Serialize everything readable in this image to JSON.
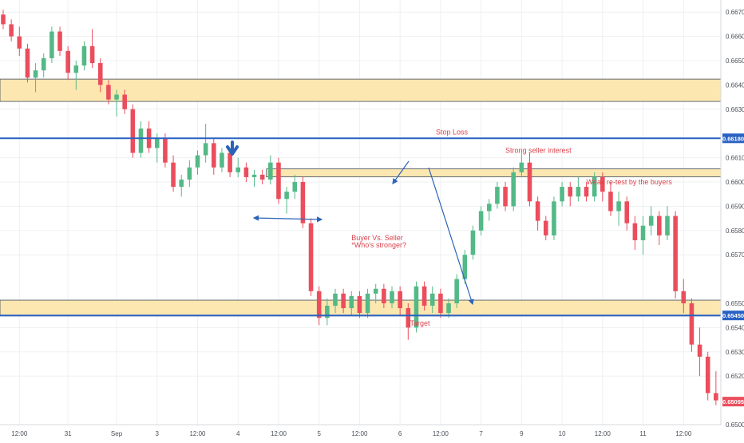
{
  "chart_data": {
    "type": "candlestick",
    "y_range": [
      0.65,
      0.6675
    ],
    "y_ticks": [
      "0.66700",
      "0.66600",
      "0.66500",
      "0.66400",
      "0.66300",
      "0.66100",
      "0.66000",
      "0.65900",
      "0.65800",
      "0.65700",
      "0.65500",
      "0.65400",
      "0.65300",
      "0.65200",
      "0.65000"
    ],
    "y_tick_values": [
      0.667,
      0.666,
      0.665,
      0.664,
      0.663,
      0.661,
      0.66,
      0.659,
      0.658,
      0.657,
      0.655,
      0.654,
      0.653,
      0.652,
      0.65
    ],
    "x_ticks": [
      "12:00",
      "31",
      "Sep",
      "3",
      "12:00",
      "4",
      "12:00",
      "5",
      "12:00",
      "6",
      "12:00",
      "7",
      "9",
      "10",
      "12:00",
      "11",
      "12:00"
    ],
    "x_tick_bars": [
      2,
      8,
      14,
      19,
      24,
      29,
      34,
      39,
      44,
      49,
      54,
      59,
      64,
      69,
      74,
      79,
      84
    ],
    "bar_count": 89,
    "colors": {
      "up": "#53b987",
      "down": "#eb4d5c",
      "zone_fill": "#fde7b1",
      "zone_border": "#3d4b5c",
      "level": "#2962c4",
      "note": "#d9434c",
      "arrow": "#2a63b8"
    },
    "candles": [
      [
        0.6669,
        0.6671,
        0.6663,
        0.6665
      ],
      [
        0.6665,
        0.6667,
        0.6658,
        0.666
      ],
      [
        0.666,
        0.6664,
        0.6652,
        0.6655
      ],
      [
        0.6655,
        0.6657,
        0.6641,
        0.6643
      ],
      [
        0.6643,
        0.6649,
        0.6637,
        0.6646
      ],
      [
        0.6646,
        0.6653,
        0.6643,
        0.6651
      ],
      [
        0.6651,
        0.6664,
        0.6649,
        0.6662
      ],
      [
        0.6662,
        0.6664,
        0.6652,
        0.6654
      ],
      [
        0.6654,
        0.6656,
        0.6642,
        0.6645
      ],
      [
        0.6645,
        0.665,
        0.6638,
        0.6648
      ],
      [
        0.6648,
        0.6658,
        0.6646,
        0.6656
      ],
      [
        0.6656,
        0.6663,
        0.6647,
        0.6649
      ],
      [
        0.6649,
        0.6651,
        0.6637,
        0.664
      ],
      [
        0.664,
        0.6642,
        0.6632,
        0.6634
      ],
      [
        0.6634,
        0.6638,
        0.6627,
        0.6636
      ],
      [
        0.6636,
        0.6638,
        0.6628,
        0.663
      ],
      [
        0.663,
        0.6632,
        0.661,
        0.6612
      ],
      [
        0.6612,
        0.6625,
        0.661,
        0.6622
      ],
      [
        0.6622,
        0.6625,
        0.6612,
        0.6614
      ],
      [
        0.6614,
        0.662,
        0.6608,
        0.6618
      ],
      [
        0.6618,
        0.662,
        0.6606,
        0.6608
      ],
      [
        0.6608,
        0.6611,
        0.6596,
        0.6598
      ],
      [
        0.6598,
        0.6603,
        0.6594,
        0.6601
      ],
      [
        0.6601,
        0.6609,
        0.6598,
        0.6606
      ],
      [
        0.6606,
        0.6613,
        0.6603,
        0.6611
      ],
      [
        0.6611,
        0.6624,
        0.6608,
        0.6616
      ],
      [
        0.6616,
        0.6618,
        0.6603,
        0.6606
      ],
      [
        0.6606,
        0.6614,
        0.6604,
        0.6612
      ],
      [
        0.6612,
        0.6614,
        0.6602,
        0.6604
      ],
      [
        0.6604,
        0.661,
        0.6602,
        0.6606
      ],
      [
        0.6606,
        0.6608,
        0.66,
        0.6602
      ],
      [
        0.6602,
        0.6605,
        0.6598,
        0.6603
      ],
      [
        0.6603,
        0.6605,
        0.6599,
        0.6601
      ],
      [
        0.6601,
        0.6611,
        0.6599,
        0.6608
      ],
      [
        0.6608,
        0.661,
        0.6591,
        0.6593
      ],
      [
        0.6593,
        0.6598,
        0.6587,
        0.6596
      ],
      [
        0.6596,
        0.6603,
        0.6593,
        0.66
      ],
      [
        0.66,
        0.6602,
        0.6581,
        0.6583
      ],
      [
        0.6583,
        0.6585,
        0.6553,
        0.6555
      ],
      [
        0.6555,
        0.6557,
        0.6541,
        0.6544
      ],
      [
        0.6544,
        0.6552,
        0.6541,
        0.6549
      ],
      [
        0.6549,
        0.6556,
        0.6546,
        0.6554
      ],
      [
        0.6554,
        0.6556,
        0.6546,
        0.6548
      ],
      [
        0.6548,
        0.6555,
        0.6545,
        0.6553
      ],
      [
        0.6553,
        0.6555,
        0.6544,
        0.6546
      ],
      [
        0.6546,
        0.6556,
        0.6544,
        0.6554
      ],
      [
        0.6554,
        0.6558,
        0.655,
        0.6556
      ],
      [
        0.6556,
        0.6558,
        0.6548,
        0.655
      ],
      [
        0.655,
        0.6557,
        0.6548,
        0.6555
      ],
      [
        0.6555,
        0.6557,
        0.6545,
        0.6548
      ],
      [
        0.6548,
        0.655,
        0.6535,
        0.654
      ],
      [
        0.654,
        0.6559,
        0.6538,
        0.6557
      ],
      [
        0.6557,
        0.6559,
        0.6547,
        0.6549
      ],
      [
        0.6549,
        0.6557,
        0.6546,
        0.6554
      ],
      [
        0.6554,
        0.6556,
        0.6544,
        0.6546
      ],
      [
        0.6546,
        0.6552,
        0.6544,
        0.655
      ],
      [
        0.655,
        0.6562,
        0.6548,
        0.656
      ],
      [
        0.656,
        0.6572,
        0.6558,
        0.657
      ],
      [
        0.657,
        0.6582,
        0.6568,
        0.658
      ],
      [
        0.658,
        0.659,
        0.6578,
        0.6588
      ],
      [
        0.6588,
        0.6593,
        0.6584,
        0.6591
      ],
      [
        0.6591,
        0.66,
        0.6589,
        0.6598
      ],
      [
        0.6598,
        0.66,
        0.6588,
        0.659
      ],
      [
        0.659,
        0.6606,
        0.6588,
        0.6604
      ],
      [
        0.6604,
        0.6612,
        0.6602,
        0.6608
      ],
      [
        0.6608,
        0.6612,
        0.659,
        0.6592
      ],
      [
        0.6592,
        0.6594,
        0.658,
        0.6584
      ],
      [
        0.6584,
        0.6586,
        0.6576,
        0.6578
      ],
      [
        0.6578,
        0.6594,
        0.6576,
        0.6592
      ],
      [
        0.6592,
        0.66,
        0.659,
        0.6598
      ],
      [
        0.6598,
        0.66,
        0.659,
        0.6594
      ],
      [
        0.6594,
        0.6602,
        0.6592,
        0.6598
      ],
      [
        0.6598,
        0.66,
        0.6592,
        0.6594
      ],
      [
        0.6594,
        0.6604,
        0.6592,
        0.6602
      ],
      [
        0.6602,
        0.6604,
        0.6592,
        0.6596
      ],
      [
        0.6596,
        0.66,
        0.6586,
        0.6588
      ],
      [
        0.6588,
        0.6596,
        0.6582,
        0.6592
      ],
      [
        0.6592,
        0.6594,
        0.658,
        0.6583
      ],
      [
        0.6583,
        0.6586,
        0.6572,
        0.6576
      ],
      [
        0.6576,
        0.6586,
        0.657,
        0.6582
      ],
      [
        0.6582,
        0.659,
        0.6578,
        0.6586
      ],
      [
        0.6586,
        0.6588,
        0.6574,
        0.6578
      ],
      [
        0.6578,
        0.659,
        0.6576,
        0.6586
      ],
      [
        0.6586,
        0.6588,
        0.6552,
        0.6555
      ],
      [
        0.6555,
        0.656,
        0.6546,
        0.655
      ],
      [
        0.655,
        0.6552,
        0.653,
        0.6533
      ],
      [
        0.6533,
        0.654,
        0.652,
        0.6528
      ],
      [
        0.6528,
        0.653,
        0.651,
        0.6513
      ],
      [
        0.6513,
        0.6522,
        0.6508,
        0.651
      ]
    ],
    "levels": [
      {
        "name": "stop-loss",
        "value": 0.6618,
        "label": "Stop Loss",
        "badge": "0.66180"
      },
      {
        "name": "target",
        "value": 0.6545,
        "label": "Target",
        "badge": "0.65450"
      }
    ],
    "zones": [
      {
        "name": "resistance-zone-top",
        "y_top": 0.66424,
        "y_bottom": 0.66332,
        "bar_start": 0,
        "bar_end": 89
      },
      {
        "name": "seller-zone",
        "y_top": 0.66054,
        "y_bottom": 0.66021,
        "bar_start": 33,
        "bar_end": 91
      },
      {
        "name": "support-zone",
        "y_top": 0.65513,
        "y_bottom": 0.65448,
        "bar_start": 0,
        "bar_end": 89
      }
    ],
    "last_price": {
      "value": 0.65095,
      "badge": "0.65095"
    },
    "annotations": [
      {
        "name": "annotation-strong-seller",
        "text": "Strong seller interest",
        "bar": 62,
        "value": 0.6612
      },
      {
        "name": "annotation-weak-retest",
        "text": "Weak re-test by the buyers",
        "bar": 72,
        "value": 0.6599
      },
      {
        "name": "annotation-buyer-vs-seller",
        "text": "Buyer Vs. Seller",
        "bar": 43,
        "value": 0.6576
      },
      {
        "name": "annotation-whos-stronger",
        "text": "*Who's stronger?",
        "bar": 43,
        "value": 0.6573
      }
    ]
  }
}
